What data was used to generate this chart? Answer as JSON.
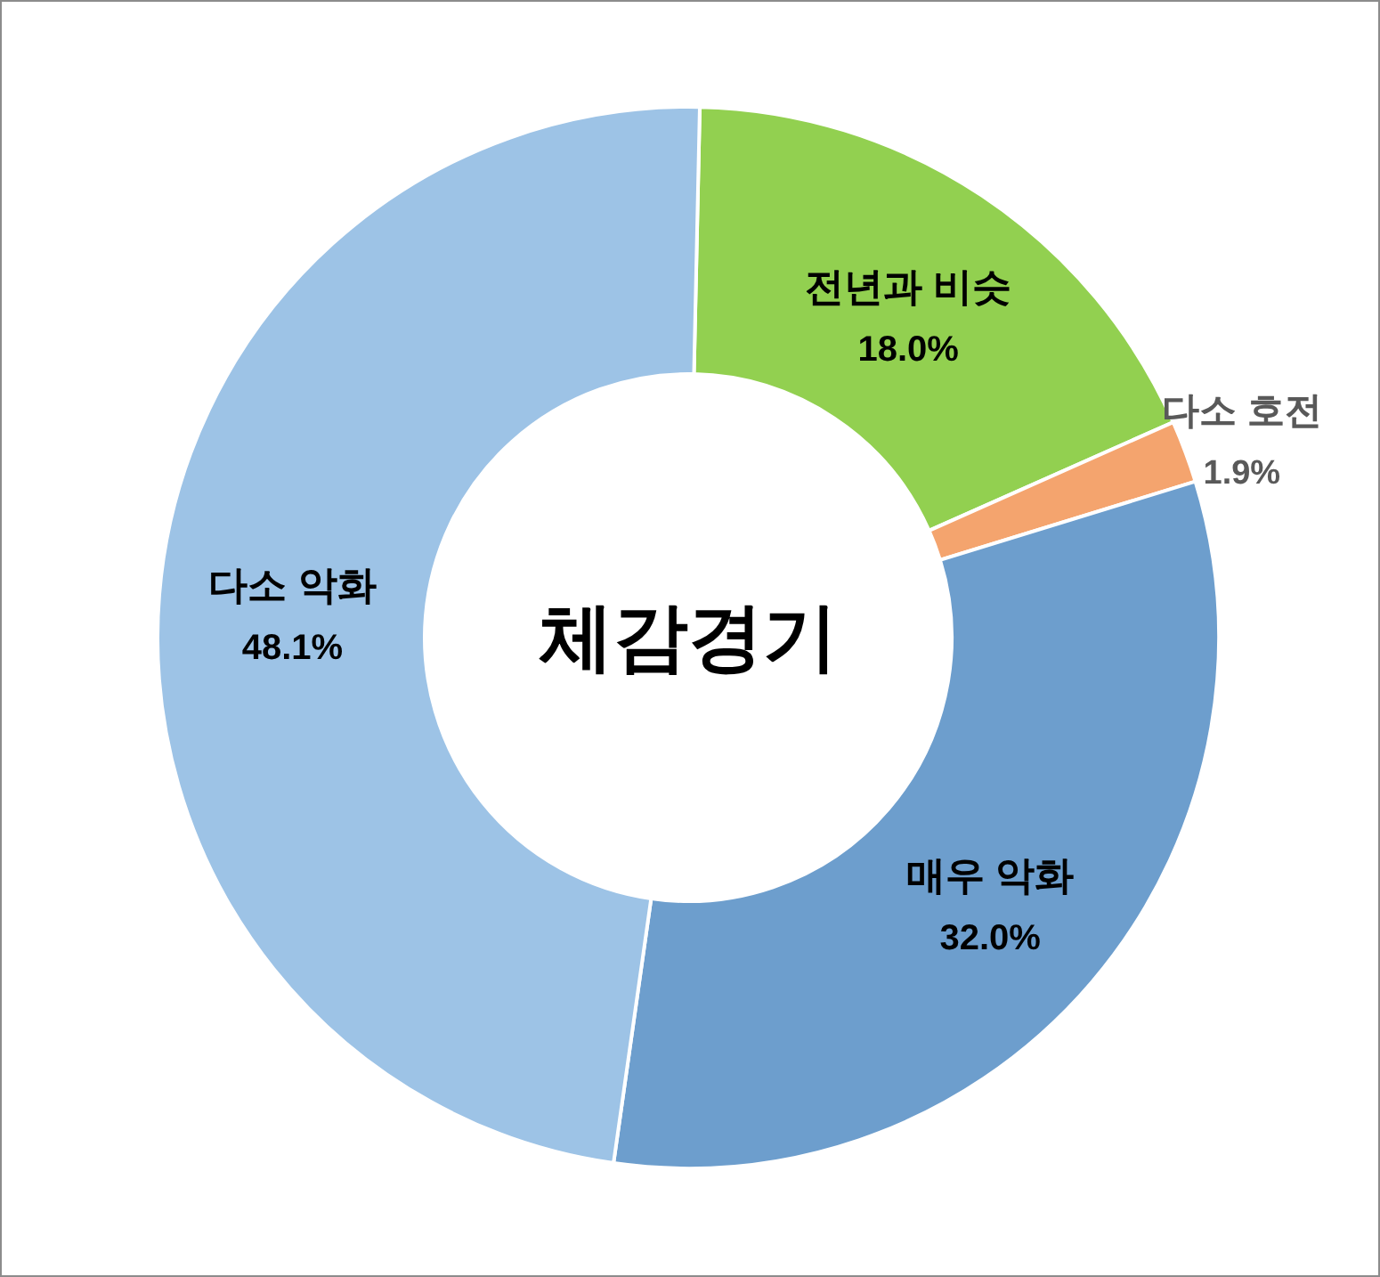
{
  "chart_data": {
    "type": "donut",
    "title": "체감경기",
    "categories": [
      "전년과 비슷",
      "다소 호전",
      "매우 악화",
      "다소 악화"
    ],
    "values": [
      18.0,
      1.9,
      32.0,
      48.1
    ],
    "colors": [
      "#92d050",
      "#f4a46e",
      "#6d9ecd",
      "#9dc3e6"
    ],
    "value_labels": [
      "18.0%",
      "1.9%",
      "32.0%",
      "48.1%"
    ]
  }
}
